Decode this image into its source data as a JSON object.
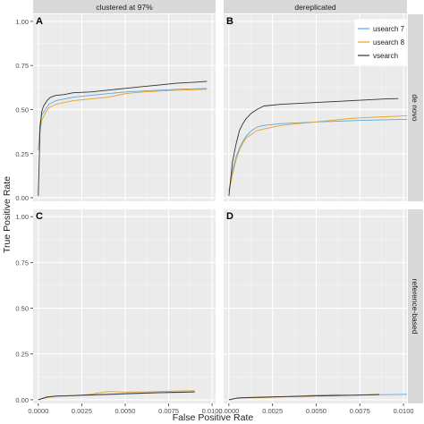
{
  "chart_data": {
    "type": "line",
    "xlabel": "False Positive Rate",
    "ylabel": "True Positive Rate",
    "xlim": [
      -0.0003,
      0.0102
    ],
    "ylim": [
      -0.02,
      1.04
    ],
    "x_ticks": [
      0,
      0.0025,
      0.005,
      0.0075,
      0.01
    ],
    "x_tick_labels": [
      "0.0000",
      "0.0025",
      "0.0050",
      "0.0075",
      "0.0100"
    ],
    "y_ticks": [
      0,
      0.25,
      0.5,
      0.75,
      1.0
    ],
    "y_tick_labels": [
      "0.00",
      "0.25",
      "0.50",
      "0.75",
      "1.00"
    ],
    "grid": true,
    "legend_placement": "top-right",
    "column_strips": [
      "clustered at 97%",
      "dereplicated"
    ],
    "row_strips": [
      "de novo",
      "reference-based"
    ],
    "colors": {
      "usearch 7": "#5aa7dc",
      "usearch 8": "#e5a124",
      "vsearch": "#333333"
    },
    "series_names": [
      "usearch 7",
      "usearch 8",
      "vsearch"
    ],
    "panels": [
      {
        "tag": "A",
        "series": [
          {
            "name": "usearch 7",
            "x": [
              0,
              0.0001,
              0.0002,
              0.0004,
              0.0006,
              0.001,
              0.0015,
              0.002,
              0.003,
              0.004,
              0.005,
              0.006,
              0.007,
              0.008,
              0.0097
            ],
            "y": [
              0.27,
              0.42,
              0.47,
              0.5,
              0.53,
              0.55,
              0.56,
              0.57,
              0.58,
              0.59,
              0.6,
              0.605,
              0.61,
              0.615,
              0.62
            ]
          },
          {
            "name": "usearch 8",
            "x": [
              0,
              0.0001,
              0.0002,
              0.0004,
              0.0006,
              0.001,
              0.0015,
              0.002,
              0.003,
              0.004,
              0.005,
              0.006,
              0.007,
              0.008,
              0.0097
            ],
            "y": [
              0.27,
              0.38,
              0.44,
              0.48,
              0.51,
              0.53,
              0.54,
              0.55,
              0.56,
              0.57,
              0.59,
              0.6,
              0.605,
              0.61,
              0.615
            ]
          },
          {
            "name": "vsearch",
            "x": [
              0,
              0.0001,
              0.0002,
              0.0003,
              0.0005,
              0.0007,
              0.001,
              0.0015,
              0.002,
              0.003,
              0.004,
              0.005,
              0.006,
              0.007,
              0.008,
              0.009,
              0.0097
            ],
            "y": [
              0.01,
              0.4,
              0.49,
              0.52,
              0.55,
              0.57,
              0.58,
              0.585,
              0.595,
              0.6,
              0.61,
              0.62,
              0.63,
              0.64,
              0.65,
              0.655,
              0.66
            ]
          }
        ]
      },
      {
        "tag": "B",
        "series": [
          {
            "name": "usearch 7",
            "x": [
              0,
              0.0002,
              0.0004,
              0.0006,
              0.0008,
              0.001,
              0.0013,
              0.0016,
              0.002,
              0.003,
              0.004,
              0.005,
              0.006,
              0.007,
              0.008,
              0.009,
              0.0102
            ],
            "y": [
              0.04,
              0.15,
              0.23,
              0.28,
              0.32,
              0.35,
              0.38,
              0.4,
              0.41,
              0.42,
              0.425,
              0.43,
              0.433,
              0.437,
              0.44,
              0.442,
              0.445
            ]
          },
          {
            "name": "usearch 8",
            "x": [
              0,
              0.0002,
              0.0004,
              0.0006,
              0.0008,
              0.001,
              0.0013,
              0.0016,
              0.002,
              0.003,
              0.004,
              0.005,
              0.006,
              0.007,
              0.008,
              0.009,
              0.0102
            ],
            "y": [
              0.03,
              0.13,
              0.21,
              0.27,
              0.31,
              0.34,
              0.36,
              0.38,
              0.39,
              0.41,
              0.42,
              0.43,
              0.44,
              0.45,
              0.455,
              0.46,
              0.465
            ]
          },
          {
            "name": "vsearch",
            "x": [
              0,
              0.0001,
              0.0002,
              0.0004,
              0.0006,
              0.0008,
              0.001,
              0.0013,
              0.0016,
              0.002,
              0.003,
              0.004,
              0.005,
              0.006,
              0.007,
              0.008,
              0.009,
              0.0097
            ],
            "y": [
              0.01,
              0.1,
              0.2,
              0.3,
              0.38,
              0.42,
              0.45,
              0.48,
              0.5,
              0.52,
              0.53,
              0.535,
              0.54,
              0.545,
              0.55,
              0.555,
              0.56,
              0.562
            ]
          }
        ]
      },
      {
        "tag": "C",
        "series": [
          {
            "name": "usearch 7",
            "x": [
              0,
              0.0005,
              0.001,
              0.002,
              0.003,
              0.004,
              0.005,
              0.006,
              0.007,
              0.008,
              0.009
            ],
            "y": [
              0.0,
              0.015,
              0.02,
              0.022,
              0.025,
              0.028,
              0.032,
              0.035,
              0.038,
              0.04,
              0.042
            ]
          },
          {
            "name": "usearch 8",
            "x": [
              0,
              0.0005,
              0.001,
              0.002,
              0.003,
              0.004,
              0.005,
              0.006,
              0.007,
              0.008,
              0.009
            ],
            "y": [
              0.0,
              0.012,
              0.018,
              0.022,
              0.03,
              0.045,
              0.042,
              0.043,
              0.045,
              0.048,
              0.05
            ]
          },
          {
            "name": "vsearch",
            "x": [
              0,
              0.0005,
              0.001,
              0.002,
              0.003,
              0.004,
              0.005,
              0.006,
              0.007,
              0.008,
              0.009
            ],
            "y": [
              0.0,
              0.015,
              0.02,
              0.023,
              0.027,
              0.03,
              0.033,
              0.036,
              0.039,
              0.041,
              0.043
            ]
          }
        ]
      },
      {
        "tag": "D",
        "series": [
          {
            "name": "usearch 7",
            "x": [
              0,
              0.0005,
              0.001,
              0.002,
              0.003,
              0.004,
              0.005,
              0.006,
              0.007,
              0.008,
              0.009,
              0.0102
            ],
            "y": [
              0.0,
              0.01,
              0.012,
              0.014,
              0.016,
              0.018,
              0.02,
              0.022,
              0.024,
              0.026,
              0.028,
              0.03
            ]
          },
          {
            "name": "usearch 8",
            "x": [
              0,
              0.0005,
              0.001,
              0.002,
              0.003,
              0.004,
              0.005,
              0.006,
              0.007,
              0.008,
              0.0086
            ],
            "y": [
              0.0,
              0.008,
              0.01,
              0.012,
              0.015,
              0.02,
              0.025,
              0.028,
              0.025,
              0.028,
              0.03
            ]
          },
          {
            "name": "vsearch",
            "x": [
              0,
              0.0005,
              0.001,
              0.002,
              0.003,
              0.004,
              0.005,
              0.006,
              0.007,
              0.008,
              0.0086
            ],
            "y": [
              0.0,
              0.01,
              0.012,
              0.014,
              0.017,
              0.019,
              0.021,
              0.023,
              0.025,
              0.027,
              0.029
            ]
          }
        ]
      }
    ]
  }
}
